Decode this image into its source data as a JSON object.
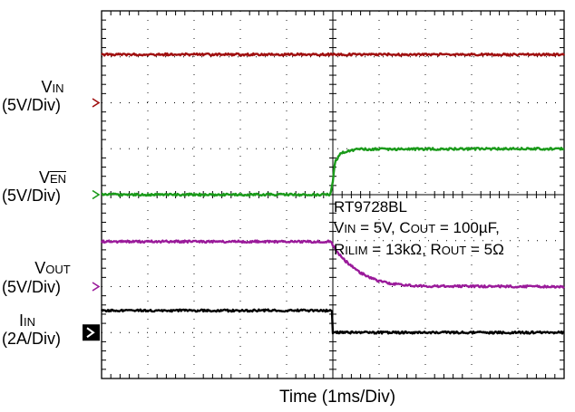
{
  "chart_data": {
    "type": "line",
    "title": "",
    "xlabel": "Time (1ms/Div)",
    "x_divisions": 10,
    "y_divisions": 8,
    "grid": true,
    "legend": "left",
    "series": [
      {
        "name_main": "V",
        "name_sub": "IN",
        "name_overline": false,
        "scale": "(5V/Div)",
        "color": "#a01010",
        "marker": "arrow",
        "label_top": 281,
        "ref_div": 6,
        "points": [
          [
            0,
            7.05
          ],
          [
            10,
            7.05
          ]
        ]
      },
      {
        "name_main": "V",
        "name_sub": "EN",
        "name_overline": true,
        "scale": "(5V/Div)",
        "color": "#1a9a1a",
        "marker": "arrow",
        "ref_div": 4,
        "points": [
          [
            0,
            4.0
          ],
          [
            4.95,
            4.0
          ],
          [
            5.0,
            4.3
          ],
          [
            5.05,
            4.72
          ],
          [
            5.15,
            4.88
          ],
          [
            5.3,
            4.95
          ],
          [
            5.6,
            4.99
          ],
          [
            10,
            5.0
          ]
        ]
      },
      {
        "name_main": "V",
        "name_sub": "OUT",
        "name_overline": false,
        "scale": "(5V/Div)",
        "color": "#9a1a9a",
        "marker": "arrow",
        "ref_div": 2,
        "points": [
          [
            0,
            2.98
          ],
          [
            4.95,
            2.98
          ],
          [
            5.05,
            2.82
          ],
          [
            5.2,
            2.62
          ],
          [
            5.4,
            2.45
          ],
          [
            5.6,
            2.3
          ],
          [
            5.8,
            2.2
          ],
          [
            6.0,
            2.12
          ],
          [
            6.3,
            2.06
          ],
          [
            6.6,
            2.03
          ],
          [
            7.0,
            2.01
          ],
          [
            10,
            2.0
          ]
        ]
      },
      {
        "name_main": "I",
        "name_sub": "IN",
        "name_overline": false,
        "scale": "(2A/Div)",
        "color": "#000000",
        "marker": "box",
        "ref_div": 1,
        "points": [
          [
            0,
            1.48
          ],
          [
            4.98,
            1.48
          ],
          [
            5.0,
            1.0
          ],
          [
            10,
            1.0
          ]
        ]
      }
    ],
    "annotations": [
      "RT9728BL",
      "V_IN = 5V, C_OUT = 100µF,",
      "R_ILIM = 13kΩ, R_OUT = 5Ω"
    ],
    "annotation_parts": {
      "line1": "RT9728BL",
      "line2_a": "V",
      "line2_b": "IN",
      "line2_c": " = 5V, C",
      "line2_d": "OUT",
      "line2_e": " = 100µF,",
      "line3_a": "R",
      "line3_b": "ILIM",
      "line3_c": " = 13kΩ, R",
      "line3_d": "OUT",
      "line3_e": " = 5Ω"
    }
  }
}
